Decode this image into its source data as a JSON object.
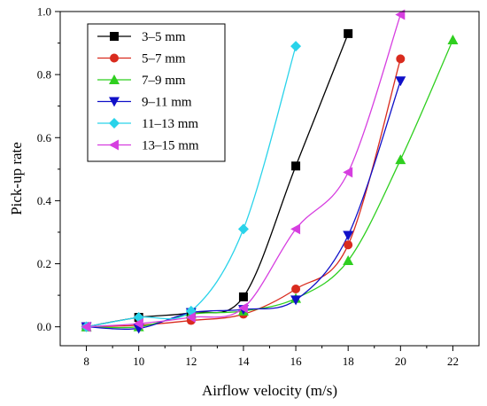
{
  "chart_data": {
    "type": "line",
    "xlabel": "Airflow velocity (m/s)",
    "ylabel": "Pick-up rate",
    "xlim": [
      7,
      23
    ],
    "ylim": [
      -0.06,
      1.0
    ],
    "xticks": [
      "8",
      "10",
      "12",
      "14",
      "16",
      "18",
      "20",
      "22"
    ],
    "yticks": [
      "0.0",
      "0.2",
      "0.4",
      "0.6",
      "0.8",
      "1.0"
    ],
    "grid": false,
    "legend_position": "top-left",
    "series": [
      {
        "name": "3–5 mm",
        "color": "#000000",
        "marker": "square",
        "x": [
          8,
          10,
          12,
          14,
          16,
          18
        ],
        "y": [
          0.0,
          0.03,
          0.045,
          0.095,
          0.51,
          0.93
        ]
      },
      {
        "name": "5–7 mm",
        "color": "#d92b1e",
        "marker": "circle",
        "x": [
          8,
          10,
          12,
          14,
          16,
          18,
          20
        ],
        "y": [
          0.0,
          0.005,
          0.02,
          0.04,
          0.12,
          0.26,
          0.85
        ]
      },
      {
        "name": "7–9 mm",
        "color": "#2fcf1f",
        "marker": "triangle-up",
        "x": [
          8,
          10,
          12,
          14,
          16,
          18,
          20,
          22
        ],
        "y": [
          0.0,
          0.0,
          0.04,
          0.05,
          0.09,
          0.21,
          0.53,
          0.91
        ]
      },
      {
        "name": "9–11 mm",
        "color": "#1010c8",
        "marker": "triangle-down",
        "x": [
          8,
          10,
          12,
          14,
          16,
          18,
          20
        ],
        "y": [
          0.0,
          -0.005,
          0.045,
          0.055,
          0.085,
          0.29,
          0.78
        ]
      },
      {
        "name": "11–13 mm",
        "color": "#29d3ea",
        "marker": "diamond",
        "x": [
          8,
          10,
          12,
          14,
          16
        ],
        "y": [
          0.0,
          0.03,
          0.05,
          0.31,
          0.89
        ]
      },
      {
        "name": "13–15 mm",
        "color": "#d63ee0",
        "marker": "triangle-left",
        "x": [
          8,
          10,
          12,
          14,
          16,
          18,
          20
        ],
        "y": [
          0.0,
          0.01,
          0.03,
          0.06,
          0.31,
          0.49,
          0.99
        ]
      }
    ]
  }
}
